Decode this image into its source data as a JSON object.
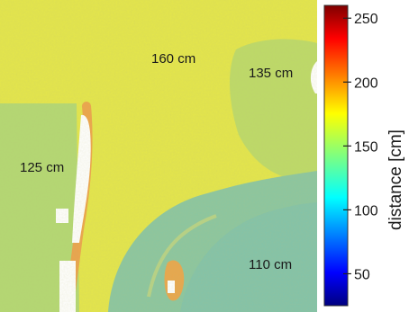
{
  "chart_data": {
    "type": "heatmap",
    "colorbar": {
      "label": "distance [cm]",
      "ticks": [
        50,
        100,
        150,
        200,
        250
      ],
      "range": [
        25,
        260
      ],
      "colormap": "jet"
    },
    "region_annotations": [
      {
        "text": "160 cm",
        "value": 160
      },
      {
        "text": "135 cm",
        "value": 135
      },
      {
        "text": "125 cm",
        "value": 125
      },
      {
        "text": "110 cm",
        "value": 110
      }
    ],
    "axes_visible": false
  }
}
